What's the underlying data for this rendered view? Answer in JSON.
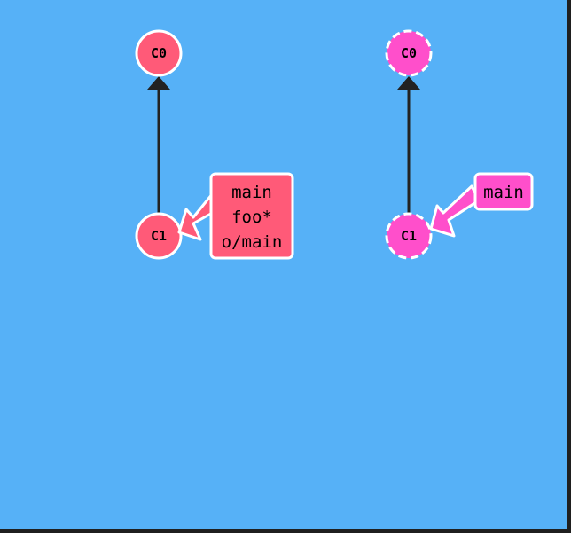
{
  "colors": {
    "background": "#56b1f7",
    "local_commit": "#ff5a78",
    "remote_commit": "#ff4fcb",
    "edge": "#222222",
    "outline": "#ffffff"
  },
  "left_repo": {
    "commits": [
      {
        "id": "C0"
      },
      {
        "id": "C1"
      }
    ],
    "branch_labels": [
      "main",
      "foo*",
      "o/main"
    ]
  },
  "right_repo": {
    "commits": [
      {
        "id": "C0"
      },
      {
        "id": "C1"
      }
    ],
    "branch_labels": [
      "main"
    ]
  }
}
